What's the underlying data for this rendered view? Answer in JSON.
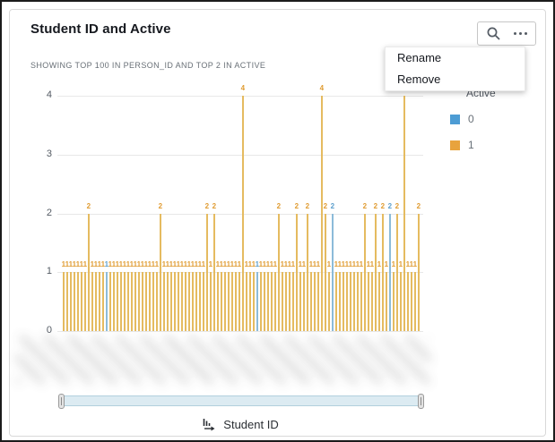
{
  "card": {
    "title": "Student ID and Active",
    "subtitle": "SHOWING TOP 100 IN PERSON_ID AND TOP 2 IN ACTIVE"
  },
  "toolbar": {
    "icons": [
      "search-icon",
      "ellipsis-menu-icon"
    ]
  },
  "menu": {
    "items": [
      "Rename",
      "Remove"
    ]
  },
  "legend": {
    "title": "Active",
    "items": [
      {
        "label": "0",
        "color": "#4d9cd4"
      },
      {
        "label": "1",
        "color": "#e8a33d"
      }
    ]
  },
  "x_axis": {
    "title": "Student ID",
    "tick_labels_obscured": true
  },
  "chart_data": {
    "type": "bar",
    "title": "Student ID and Active",
    "xlabel": "Student ID",
    "ylabel": "",
    "ylim": [
      0,
      4
    ],
    "yticks": [
      0,
      1,
      2,
      3,
      4
    ],
    "grid": true,
    "legend_position": "right",
    "series_field": "Active",
    "series": [
      {
        "name": "0",
        "color": "#5c9fcc",
        "fill": "#8cbbd9"
      },
      {
        "name": "1",
        "color": "#e09c32",
        "fill": "#e5bb60"
      }
    ],
    "values": [
      1,
      1,
      1,
      1,
      1,
      1,
      1,
      2,
      1,
      1,
      1,
      1,
      1,
      1,
      1,
      1,
      1,
      1,
      1,
      1,
      1,
      1,
      1,
      1,
      1,
      1,
      1,
      2,
      1,
      1,
      1,
      1,
      1,
      1,
      1,
      1,
      1,
      1,
      1,
      1,
      2,
      1,
      2,
      1,
      1,
      1,
      1,
      1,
      1,
      1,
      4,
      1,
      1,
      1,
      1,
      1,
      1,
      1,
      1,
      1,
      2,
      1,
      1,
      1,
      1,
      2,
      1,
      1,
      2,
      1,
      1,
      1,
      4,
      2,
      1,
      2,
      1,
      1,
      1,
      1,
      1,
      1,
      1,
      1,
      2,
      1,
      1,
      2,
      1,
      2,
      1,
      2,
      1,
      2,
      1,
      4,
      1,
      1,
      1,
      2
    ],
    "active": [
      1,
      1,
      1,
      1,
      1,
      1,
      1,
      1,
      1,
      1,
      1,
      1,
      0,
      1,
      1,
      1,
      1,
      1,
      1,
      1,
      1,
      1,
      1,
      1,
      1,
      1,
      1,
      1,
      1,
      1,
      1,
      1,
      1,
      1,
      1,
      1,
      1,
      1,
      1,
      1,
      1,
      1,
      1,
      1,
      1,
      1,
      1,
      1,
      1,
      1,
      1,
      1,
      1,
      1,
      0,
      1,
      1,
      1,
      1,
      1,
      1,
      1,
      1,
      1,
      1,
      1,
      1,
      1,
      1,
      1,
      1,
      1,
      1,
      1,
      1,
      0,
      1,
      1,
      1,
      1,
      1,
      1,
      1,
      1,
      1,
      1,
      1,
      1,
      1,
      1,
      1,
      0,
      1,
      1,
      1,
      1,
      1,
      1,
      1,
      1
    ]
  }
}
